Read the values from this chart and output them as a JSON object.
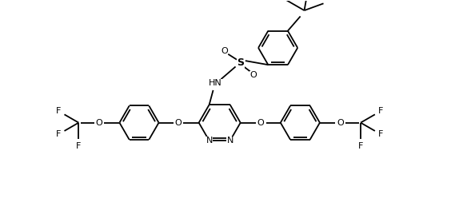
{
  "bg": "#ffffff",
  "lc": "#000000",
  "lw": 1.3,
  "figsize": [
    5.69,
    2.68
  ],
  "dpi": 100,
  "xlim": [
    0.0,
    11.5
  ],
  "ylim": [
    -0.2,
    5.2
  ]
}
